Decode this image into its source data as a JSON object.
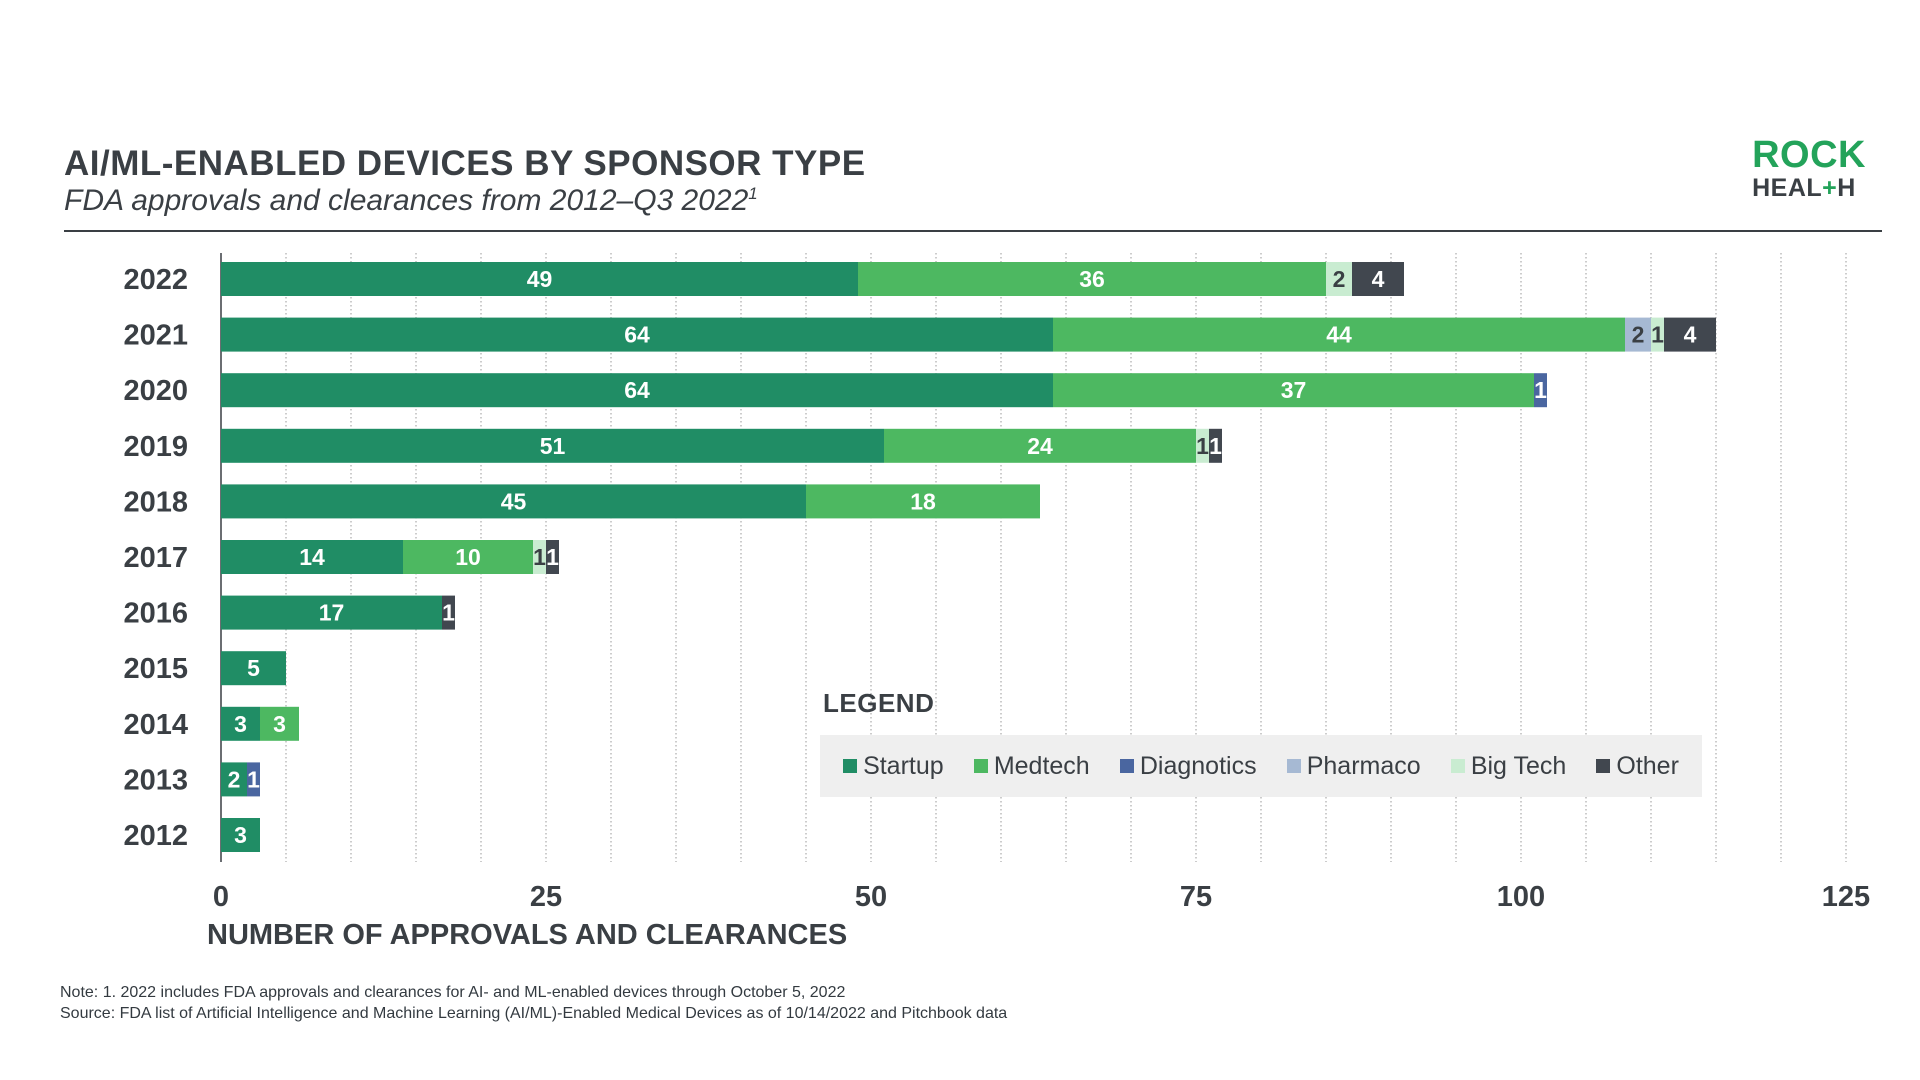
{
  "header": {
    "title": "AI/ML-ENABLED DEVICES BY SPONSOR TYPE",
    "subtitle": "FDA approvals and clearances from 2012–Q3 2022",
    "subtitle_sup": "1"
  },
  "logo": {
    "line1": "ROCK",
    "line2_a": "HEAL",
    "line2_plus": "+",
    "line2_b": "H"
  },
  "legend": {
    "title": "LEGEND",
    "items": [
      {
        "label": "Startup",
        "color": "#208d65"
      },
      {
        "label": "Medtech",
        "color": "#4db861"
      },
      {
        "label": "Diagnotics",
        "color": "#4a66a0"
      },
      {
        "label": "Pharmaco",
        "color": "#a6b9d3"
      },
      {
        "label": "Big Tech",
        "color": "#c9ecd1"
      },
      {
        "label": "Other",
        "color": "#41474f"
      }
    ]
  },
  "notes": {
    "note": "Note: 1. 2022 includes FDA approvals and clearances for AI- and ML-enabled devices through October 5, 2022",
    "source": "Source: FDA list of Artificial Intelligence and Machine Learning (AI/ML)-Enabled Medical Devices as of 10/14/2022 and Pitchbook data"
  },
  "chart_data": {
    "type": "bar",
    "orientation": "horizontal",
    "stacked": true,
    "categories": [
      "2022",
      "2021",
      "2020",
      "2019",
      "2018",
      "2017",
      "2016",
      "2015",
      "2014",
      "2013",
      "2012"
    ],
    "series": [
      {
        "name": "Startup",
        "color": "#208d65",
        "values": [
          49,
          64,
          64,
          51,
          45,
          14,
          17,
          5,
          3,
          2,
          3
        ]
      },
      {
        "name": "Medtech",
        "color": "#4db861",
        "values": [
          36,
          44,
          37,
          24,
          18,
          10,
          0,
          0,
          3,
          0,
          0
        ]
      },
      {
        "name": "Diagnotics",
        "color": "#4a66a0",
        "values": [
          0,
          0,
          1,
          0,
          0,
          0,
          0,
          0,
          0,
          1,
          0
        ]
      },
      {
        "name": "Pharmaco",
        "color": "#a6b9d3",
        "values": [
          0,
          2,
          0,
          0,
          0,
          0,
          0,
          0,
          0,
          0,
          0
        ]
      },
      {
        "name": "Big Tech",
        "color": "#c9ecd1",
        "values": [
          2,
          1,
          0,
          1,
          0,
          1,
          0,
          0,
          0,
          0,
          0
        ]
      },
      {
        "name": "Other",
        "color": "#41474f",
        "values": [
          4,
          4,
          0,
          1,
          0,
          1,
          1,
          0,
          0,
          0,
          0
        ]
      }
    ],
    "xlabel": "NUMBER OF APPROVALS AND CLEARANCES",
    "ylabel": "",
    "xlim": [
      0,
      125
    ],
    "xticks": [
      0,
      25,
      50,
      75,
      100,
      125
    ],
    "grid": "vertical dotted every 5",
    "legend_position": "bottom-right inside plot"
  }
}
